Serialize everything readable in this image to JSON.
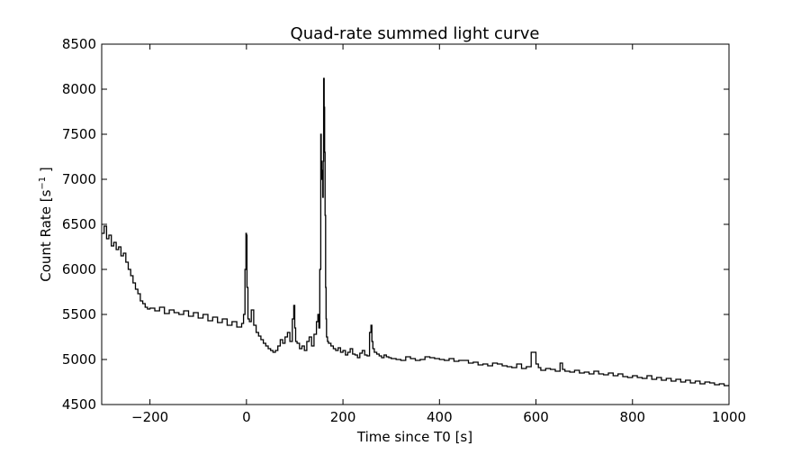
{
  "chart_data": {
    "type": "line",
    "title": "Quad-rate summed light curve",
    "xlabel": "Time since T0 [s]",
    "ylabel_main": "Count Rate [s",
    "ylabel_sup": "−1",
    "ylabel_tail": " ]",
    "xlim": [
      -300,
      1000
    ],
    "ylim": [
      4500,
      8500
    ],
    "xticks": [
      -200,
      0,
      200,
      400,
      600,
      800,
      1000
    ],
    "xtick_labels": [
      "−200",
      "0",
      "200",
      "400",
      "600",
      "800",
      "1000"
    ],
    "yticks": [
      4500,
      5000,
      5500,
      6000,
      6500,
      7000,
      7500,
      8000,
      8500
    ],
    "ytick_labels": [
      "4500",
      "5000",
      "5500",
      "6000",
      "6500",
      "7000",
      "7500",
      "8000",
      "8500"
    ],
    "grid": false,
    "line_color": "#000000",
    "step": true,
    "series": [
      {
        "x": [
          -300,
          -295,
          -290,
          -285,
          -280,
          -275,
          -270,
          -265,
          -260,
          -255,
          -250,
          -245,
          -240,
          -235,
          -230,
          -225,
          -220,
          -215,
          -210,
          -205,
          -200,
          -190,
          -180,
          -170,
          -160,
          -150,
          -140,
          -130,
          -120,
          -110,
          -100,
          -90,
          -80,
          -70,
          -60,
          -50,
          -40,
          -30,
          -20,
          -10,
          -6,
          -3,
          -1,
          0,
          1,
          3,
          6,
          10,
          15,
          20,
          25,
          30,
          35,
          40,
          45,
          50,
          55,
          60,
          65,
          70,
          75,
          80,
          85,
          90,
          95,
          98,
          100,
          102,
          105,
          110,
          115,
          120,
          125,
          130,
          135,
          140,
          145,
          148,
          150,
          152,
          154,
          155,
          156,
          157,
          158,
          159,
          160,
          161,
          162,
          163,
          164,
          165,
          166,
          168,
          170,
          175,
          180,
          185,
          190,
          195,
          200,
          205,
          210,
          215,
          220,
          225,
          230,
          235,
          240,
          245,
          250,
          255,
          258,
          260,
          262,
          265,
          270,
          275,
          280,
          285,
          290,
          295,
          300,
          310,
          320,
          330,
          340,
          350,
          360,
          370,
          380,
          390,
          400,
          410,
          420,
          430,
          440,
          450,
          460,
          470,
          480,
          490,
          500,
          510,
          520,
          530,
          540,
          550,
          560,
          570,
          580,
          590,
          600,
          605,
          610,
          620,
          630,
          640,
          650,
          655,
          660,
          670,
          680,
          690,
          700,
          710,
          720,
          730,
          740,
          750,
          760,
          770,
          780,
          790,
          800,
          810,
          820,
          830,
          840,
          850,
          860,
          870,
          880,
          890,
          900,
          910,
          920,
          930,
          940,
          950,
          960,
          970,
          980,
          990,
          1000
        ],
        "y": [
          6400,
          6480,
          6340,
          6380,
          6260,
          6300,
          6220,
          6250,
          6150,
          6180,
          6080,
          6000,
          5930,
          5850,
          5780,
          5730,
          5650,
          5620,
          5580,
          5560,
          5570,
          5540,
          5580,
          5510,
          5550,
          5520,
          5500,
          5540,
          5480,
          5520,
          5460,
          5500,
          5430,
          5470,
          5410,
          5450,
          5380,
          5420,
          5360,
          5400,
          5500,
          6000,
          6400,
          6380,
          5800,
          5450,
          5420,
          5550,
          5380,
          5300,
          5260,
          5220,
          5180,
          5150,
          5120,
          5100,
          5080,
          5100,
          5150,
          5220,
          5180,
          5250,
          5300,
          5200,
          5450,
          5600,
          5350,
          5200,
          5180,
          5120,
          5150,
          5100,
          5200,
          5250,
          5150,
          5280,
          5420,
          5500,
          5350,
          6000,
          7500,
          7200,
          7000,
          7100,
          6800,
          7200,
          8120,
          7800,
          7300,
          6600,
          5800,
          5450,
          5250,
          5200,
          5180,
          5150,
          5120,
          5100,
          5130,
          5080,
          5100,
          5050,
          5080,
          5120,
          5060,
          5050,
          5020,
          5070,
          5100,
          5050,
          5040,
          5300,
          5380,
          5200,
          5120,
          5080,
          5060,
          5040,
          5020,
          5050,
          5030,
          5020,
          5010,
          5000,
          4990,
          5030,
          5010,
          4990,
          5000,
          5030,
          5020,
          5010,
          5000,
          4990,
          5010,
          4980,
          4990,
          4990,
          4960,
          4970,
          4940,
          4950,
          4930,
          4960,
          4950,
          4930,
          4920,
          4910,
          4950,
          4900,
          4920,
          5080,
          4950,
          4910,
          4880,
          4900,
          4890,
          4870,
          4960,
          4890,
          4870,
          4860,
          4880,
          4850,
          4860,
          4840,
          4870,
          4840,
          4830,
          4850,
          4820,
          4840,
          4810,
          4800,
          4820,
          4800,
          4790,
          4820,
          4780,
          4800,
          4770,
          4790,
          4760,
          4780,
          4750,
          4770,
          4740,
          4760,
          4730,
          4750,
          4740,
          4720,
          4730,
          4710,
          4720
        ]
      }
    ]
  }
}
